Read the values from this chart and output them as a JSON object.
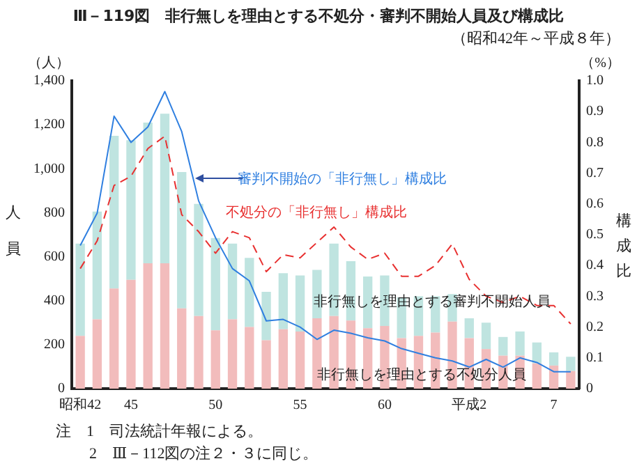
{
  "chart_data": {
    "type": "bar",
    "title": "Ⅲ－119図　非行無しを理由とする不処分・審判不開始人員及び構成比",
    "subtitle": "（昭和42年～平成８年）",
    "ylabel": "人員",
    "y2label": "構成比",
    "annotations": [
      "（人）",
      "（%）",
      "注　1　司法統計年報による。",
      "2　Ⅲ－112図の注２・３に同じ。"
    ],
    "categories": [
      "昭和42",
      null,
      null,
      "45",
      null,
      null,
      null,
      null,
      "50",
      null,
      null,
      null,
      null,
      "55",
      null,
      null,
      null,
      null,
      "60",
      null,
      null,
      null,
      null,
      "平成2",
      null,
      null,
      null,
      null,
      "7",
      null
    ],
    "stacked": true,
    "series": [
      {
        "name": "非行無しを理由とする不処分人員",
        "color": "#f2bcbc",
        "values": [
          240,
          315,
          455,
          495,
          570,
          570,
          365,
          330,
          265,
          315,
          280,
          220,
          270,
          260,
          320,
          330,
          310,
          275,
          285,
          230,
          240,
          255,
          305,
          230,
          180,
          150,
          150,
          115,
          105,
          80
        ]
      },
      {
        "name": "非行無しを理由とする審判不開始人員",
        "color": "#bfe4e0",
        "values": [
          420,
          490,
          695,
          635,
          640,
          680,
          620,
          510,
          420,
          345,
          315,
          220,
          255,
          255,
          220,
          330,
          270,
          235,
          230,
          185,
          180,
          165,
          125,
          90,
          120,
          85,
          110,
          95,
          60,
          65
        ]
      },
      {
        "name": "審判不開始の「非行無し」構成比",
        "type": "line",
        "axis": "y2",
        "color": "#2f7fe0",
        "line_style": "solid",
        "values": [
          0.465,
          0.57,
          0.885,
          0.8,
          0.85,
          0.965,
          0.835,
          0.61,
          0.49,
          0.39,
          0.35,
          0.22,
          0.225,
          0.2,
          0.16,
          0.19,
          0.18,
          0.165,
          0.155,
          0.13,
          0.115,
          0.1,
          0.09,
          0.07,
          0.095,
          0.07,
          0.1,
          0.085,
          0.055,
          0.055
        ]
      },
      {
        "name": "不処分の「非行無し」構成比",
        "type": "line",
        "axis": "y2",
        "color": "#e83030",
        "line_style": "dashed",
        "values": [
          0.39,
          0.48,
          0.66,
          0.69,
          0.78,
          0.82,
          0.565,
          0.51,
          0.44,
          0.51,
          0.49,
          0.38,
          0.435,
          0.425,
          0.475,
          0.525,
          0.46,
          0.42,
          0.44,
          0.365,
          0.365,
          0.4,
          0.47,
          0.355,
          0.3,
          0.28,
          0.3,
          0.27,
          0.27,
          0.21
        ]
      }
    ],
    "ylim": [
      0,
      1400
    ],
    "yticks": [
      0,
      200,
      400,
      600,
      800,
      {
        "value": 1000,
        "label": "1,000"
      },
      {
        "value": 1200,
        "label": "1,200"
      },
      {
        "value": 1400,
        "label": "1,400"
      }
    ],
    "y2lim": [
      0,
      1
    ],
    "y2ticks": [
      0,
      0.1,
      0.2,
      0.3,
      0.4,
      0.5,
      0.6,
      0.7,
      0.8,
      0.9,
      {
        "value": 1,
        "label": "1.0"
      }
    ],
    "grid": false,
    "legend": false,
    "marker": "none"
  }
}
